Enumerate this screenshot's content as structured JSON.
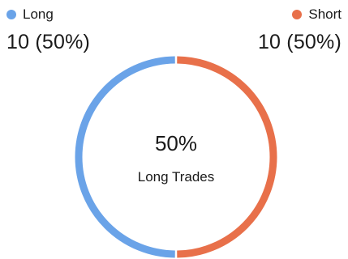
{
  "chart_data": {
    "type": "pie",
    "series": [
      {
        "name": "Long",
        "value": 10,
        "display": "10 (50%)",
        "color": "#6aa3e8"
      },
      {
        "name": "Short",
        "value": 10,
        "display": "10 (50%)",
        "color": "#e8704a"
      }
    ],
    "center": {
      "percent": "50%",
      "label": "Long Trades"
    }
  }
}
